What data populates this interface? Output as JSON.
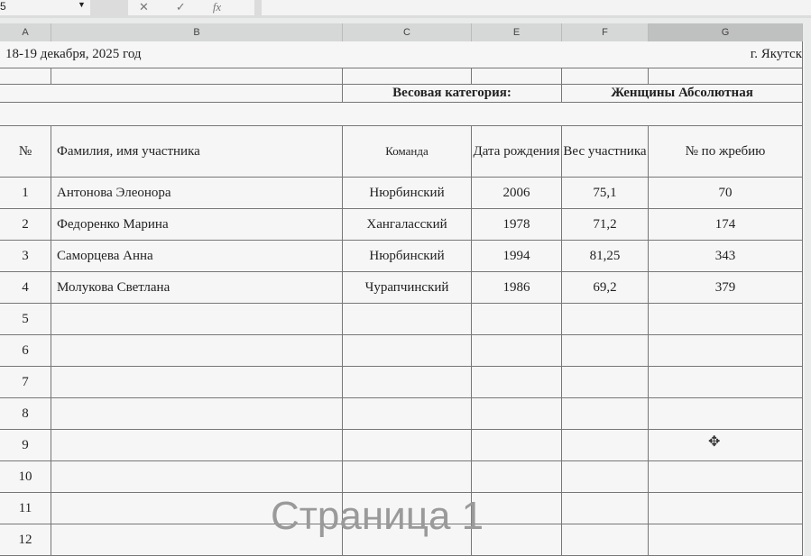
{
  "formula_bar": {
    "name_box": "5",
    "fx": "fx"
  },
  "columns": [
    "A",
    "B",
    "C",
    "E",
    "F",
    "G"
  ],
  "sheet": {
    "date": "18-19 декабря, 2025 год",
    "city": "г. Якутск",
    "category_label": "Весовая категория:",
    "category_value": "Женщины Абсолютная",
    "headers": {
      "num": "№",
      "name": "Фамилия, имя участника",
      "team": "Команда",
      "birth": "Дата рождения",
      "weight": "Вес участника",
      "draw": "№ по жребию"
    },
    "rows": [
      {
        "n": "1",
        "name": "Антонова Элеонора",
        "team": "Нюрбинский",
        "birth": "2006",
        "weight": "75,1",
        "draw": "70"
      },
      {
        "n": "2",
        "name": "Федоренко Марина",
        "team": "Хангаласский",
        "birth": "1978",
        "weight": "71,2",
        "draw": "174"
      },
      {
        "n": "3",
        "name": "Саморцева Анна",
        "team": "Нюрбинский",
        "birth": "1994",
        "weight": "81,25",
        "draw": "343"
      },
      {
        "n": "4",
        "name": "Молукова Светлана",
        "team": "Чурапчинский",
        "birth": "1986",
        "weight": "69,2",
        "draw": "379"
      },
      {
        "n": "5"
      },
      {
        "n": "6"
      },
      {
        "n": "7"
      },
      {
        "n": "8"
      },
      {
        "n": "9"
      },
      {
        "n": "10"
      },
      {
        "n": "11"
      },
      {
        "n": "12"
      }
    ]
  },
  "watermark": "Страница 1"
}
